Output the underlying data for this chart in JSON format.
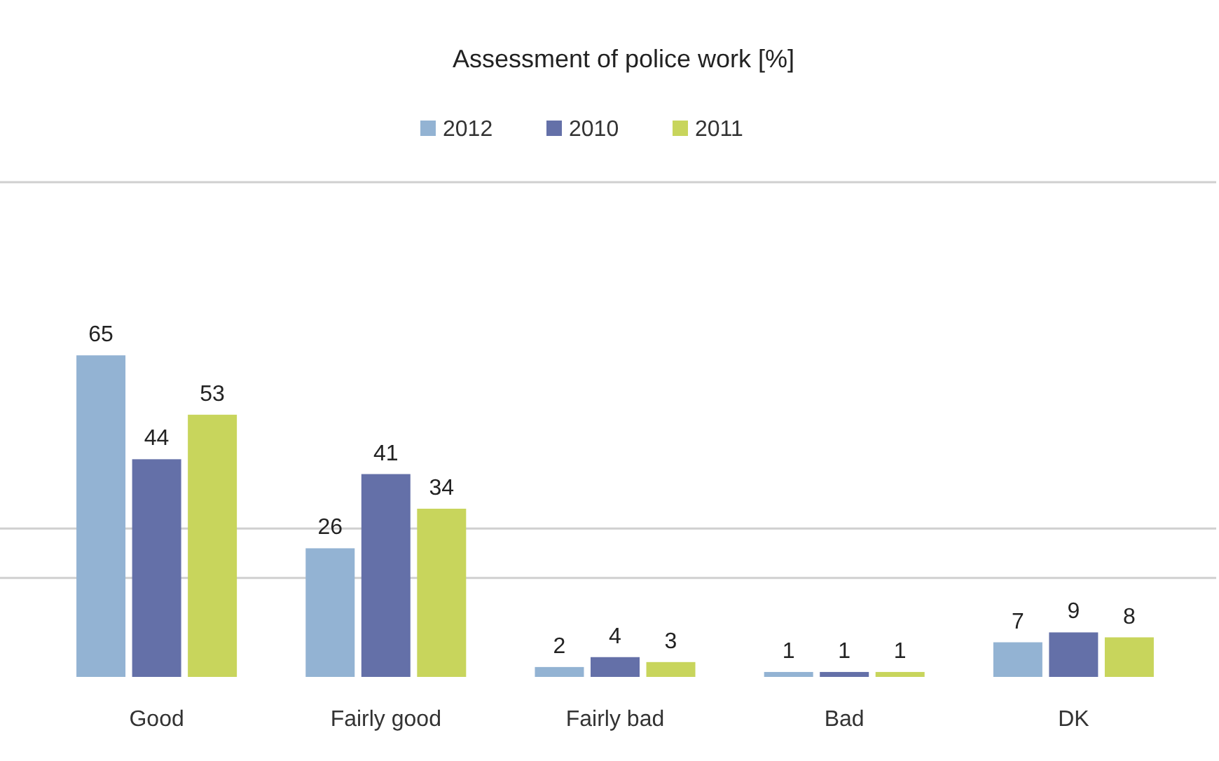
{
  "chart_data": {
    "type": "bar",
    "title": "Assessment of police work [%]",
    "categories": [
      "Good",
      "Fairly good",
      "Fairly bad",
      "Bad",
      "DK"
    ],
    "series": [
      {
        "name": "2012",
        "color": "#93b3d3",
        "values": [
          65,
          26,
          2,
          1,
          7
        ]
      },
      {
        "name": "2010",
        "color": "#6470a8",
        "values": [
          44,
          41,
          4,
          1,
          9
        ]
      },
      {
        "name": "2011",
        "color": "#c8d55c",
        "values": [
          53,
          34,
          3,
          1,
          8
        ]
      }
    ],
    "ylim": [
      0,
      100
    ],
    "ref_lines": [
      {
        "axis": "y",
        "value": 20,
        "color": "#d0d0d0"
      },
      {
        "axis": "y",
        "value": 30,
        "color": "#d0d0d0"
      },
      {
        "axis": "y",
        "value": 100,
        "color": "#d0d0d0"
      }
    ],
    "legend": "top",
    "data_labels": true
  }
}
